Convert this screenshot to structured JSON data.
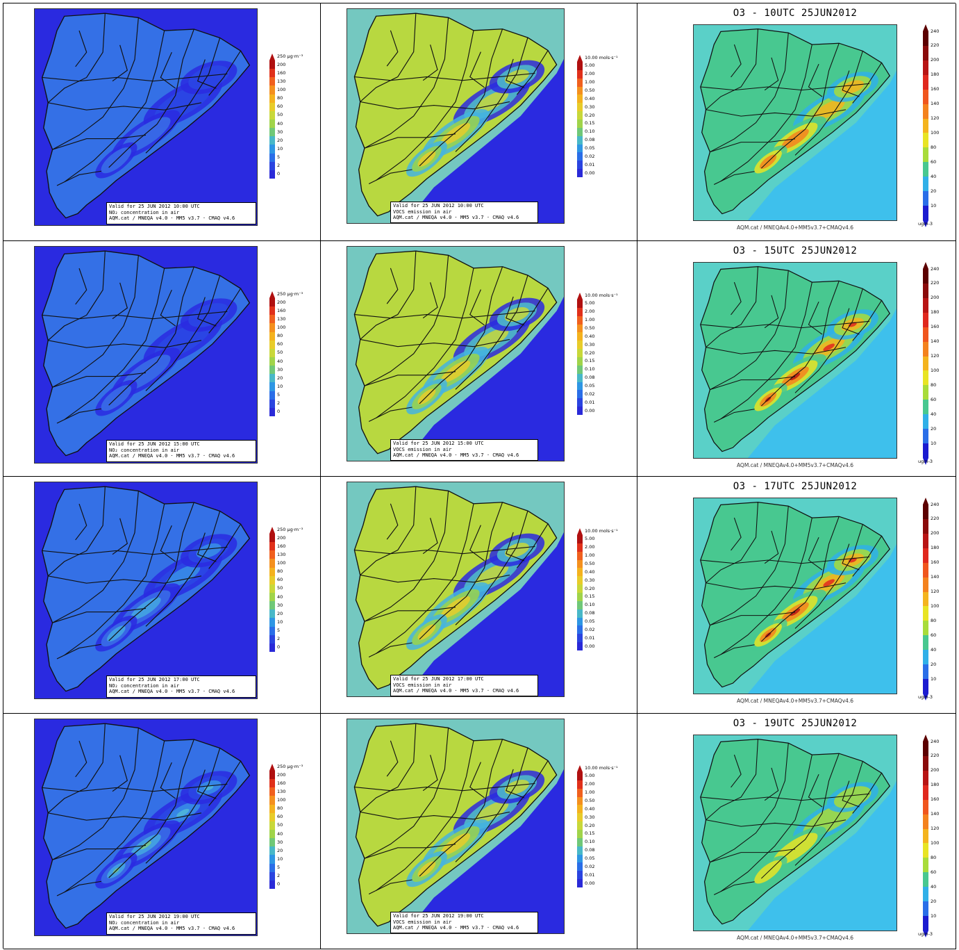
{
  "no2": {
    "unit": "250 μg·m⁻³",
    "ticks": [
      "200",
      "160",
      "130",
      "100",
      "80",
      "60",
      "50",
      "40",
      "30",
      "20",
      "10",
      "5",
      "2",
      "0"
    ],
    "colors": [
      "#b01010",
      "#e0301a",
      "#f0601e",
      "#f4901e",
      "#f4b21e",
      "#e8cc2a",
      "#c8d83a",
      "#a0d44a",
      "#70c878",
      "#48b8c8",
      "#2e96e4",
      "#2a6ee8",
      "#2a44e0",
      "#2a2ad8"
    ],
    "species": "NO₂ concentration in air",
    "credit": "AQM.cat / MNEQA v4.0 · MM5 v3.7 · CMAQ v4.6",
    "frames": [
      {
        "valid": "Valid for 25 JUN 2012 10:00 UTC"
      },
      {
        "valid": "Valid for 25 JUN 2012 15:00 UTC"
      },
      {
        "valid": "Valid for 25 JUN 2012 17:00 UTC"
      },
      {
        "valid": "Valid for 25 JUN 2012 19:00 UTC"
      }
    ]
  },
  "voc": {
    "unit": "10.00 mols·s⁻¹",
    "ticks": [
      "5.00",
      "2.00",
      "1.00",
      "0.50",
      "0.40",
      "0.30",
      "0.20",
      "0.15",
      "0.10",
      "0.08",
      "0.05",
      "0.02",
      "0.01",
      "0.00"
    ],
    "colors": [
      "#b01010",
      "#e0301a",
      "#f0601e",
      "#f4901e",
      "#f4b21e",
      "#e8cc2a",
      "#c8d83a",
      "#a0d44a",
      "#70c878",
      "#48b8c8",
      "#2e96e4",
      "#2a6ee8",
      "#2a44e0",
      "#2a2ad8"
    ],
    "species": "VOCS emission in air",
    "credit": "AQM.cat / MNEQA v4.0 · MM5 v3.7 · CMAQ v4.6",
    "frames": [
      {
        "valid": "Valid for 25 JUN 2012 10:00 UTC"
      },
      {
        "valid": "Valid for 25 JUN 2012 15:00 UTC"
      },
      {
        "valid": "Valid for 25 JUN 2012 17:00 UTC"
      },
      {
        "valid": "Valid for 25 JUN 2012 19:00 UTC"
      }
    ]
  },
  "o3": {
    "ticks": [
      "240",
      "220",
      "200",
      "180",
      "160",
      "140",
      "120",
      "100",
      "80",
      "60",
      "40",
      "20",
      "10"
    ],
    "colors": [
      "#5c0000",
      "#8a0a0a",
      "#b81414",
      "#e0281e",
      "#f0561e",
      "#f4821e",
      "#f4b41e",
      "#e8e424",
      "#a8dc3a",
      "#48c890",
      "#30b0e8",
      "#2a6ee8",
      "#1b1bd0"
    ],
    "unit": "ugm-3",
    "credit": "AQM.cat  /  MNEQAv4.0+MM5v3.7+CMAQv4.6",
    "frames": [
      {
        "title": "O3 - 10UTC 25JUN2012"
      },
      {
        "title": "O3 - 15UTC 25JUN2012"
      },
      {
        "title": "O3 - 17UTC 25JUN2012"
      },
      {
        "title": "O3 - 19UTC 25JUN2012"
      }
    ]
  }
}
